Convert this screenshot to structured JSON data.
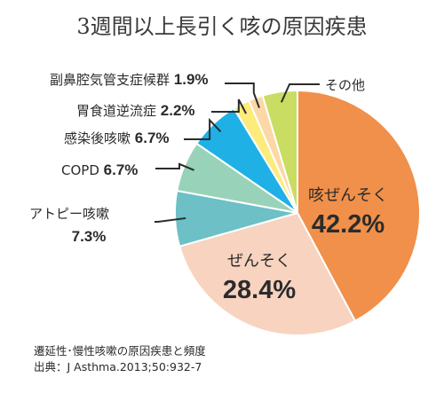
{
  "chart_data": {
    "type": "pie",
    "title": "3週間以上長引く咳の原因疾患",
    "slices": [
      {
        "label": "咳ぜんそく",
        "value": 42.2,
        "value_text": "42.2%",
        "color": "#f0904a"
      },
      {
        "label": "ぜんそく",
        "value": 28.4,
        "value_text": "28.4%",
        "color": "#f7d3c0"
      },
      {
        "label": "アトピー咳嗽",
        "value": 7.3,
        "value_text": "7.3%",
        "color": "#6cc0c6"
      },
      {
        "label": "COPD",
        "value": 6.7,
        "value_text": "6.7%",
        "color": "#98d3b9"
      },
      {
        "label": "感染後咳嗽",
        "value": 6.7,
        "value_text": "6.7%",
        "color": "#1fb0e6"
      },
      {
        "label": "胃食道逆流症",
        "value": 2.2,
        "value_text": "2.2%",
        "color": "#fdeb7c"
      },
      {
        "label": "副鼻腔気管支症候群",
        "value": 1.9,
        "value_text": "1.9%",
        "color": "#fbd8a6"
      },
      {
        "label": "その他",
        "value": 4.6,
        "value_text": "",
        "color": "#c9dd62"
      }
    ]
  },
  "notes": {
    "line1": "遷延性･慢性咳嗽の原因疾患と頻度",
    "line2": "出典：J Asthma.2013;50:932-7"
  }
}
